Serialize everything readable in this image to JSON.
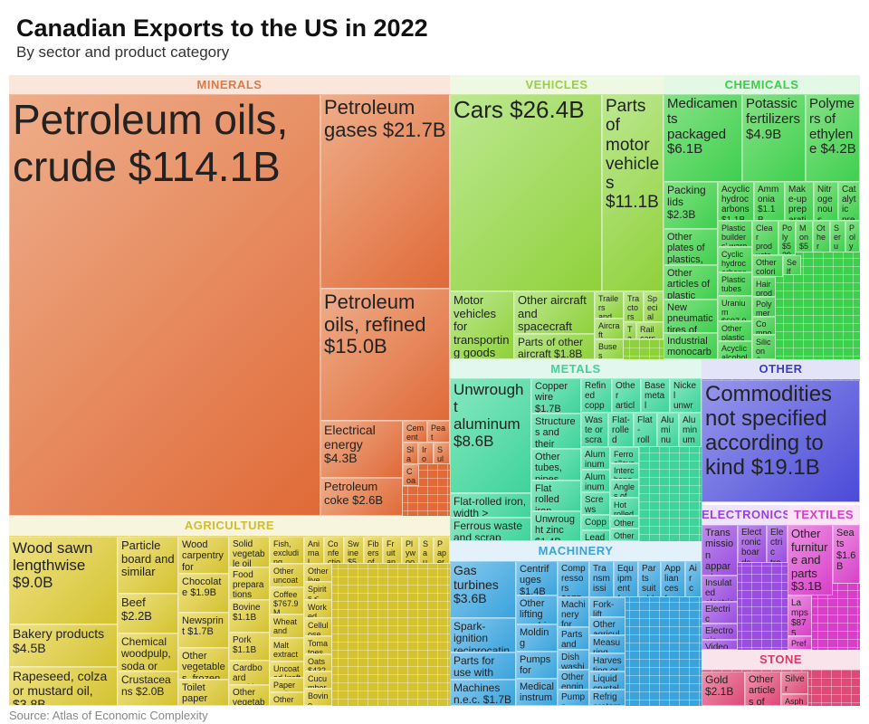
{
  "title": "Canadian Exports to the US in 2022",
  "subtitle": "By sector and product category",
  "source": "Source: Atlas of Economic Complexity",
  "chart_data": {
    "type": "treemap",
    "sectors": [
      {
        "name": "MINERALS",
        "color": "#e06a38",
        "tiles": [
          [
            "Petroleum oils, crude",
            "$114.1B"
          ],
          [
            "Petroleum gases",
            "$21.7B"
          ],
          [
            "Petroleum oils, refined",
            "$15.0B"
          ],
          [
            "Electrical energy",
            "$4.3B"
          ],
          [
            "Petroleum coke",
            "$2.6B"
          ],
          [
            "Cement",
            "$497."
          ],
          [
            "Peat",
            "$482."
          ],
          [
            "Slag, ash and",
            ""
          ],
          [
            "Iron ores and",
            ""
          ],
          [
            "Sulphur crude",
            "$28"
          ],
          [
            "Coal",
            "$255."
          ]
        ]
      },
      {
        "name": "VEHICLES",
        "color": "#8fd13a",
        "tiles": [
          [
            "Cars",
            "$26.4B"
          ],
          [
            "Parts of motor vehicles",
            "$11.1B"
          ],
          [
            "Motor vehicles for transporting goods",
            ""
          ],
          [
            "Other aircraft and spacecraft",
            ""
          ],
          [
            "Parts of other aircraft",
            "$1.8B"
          ],
          [
            "Trailers and semi-trailers",
            ""
          ],
          [
            "Tractors",
            "$480."
          ],
          [
            "Special purpose motor",
            ""
          ],
          [
            "Aircraft launching",
            ""
          ],
          [
            "Tanks",
            ""
          ],
          [
            "Rail cars",
            ""
          ],
          [
            "Buses",
            "$488.9M"
          ]
        ]
      },
      {
        "name": "CHEMICALS",
        "color": "#3fcf4f",
        "tiles": [
          [
            "Medicaments packaged",
            "$6.1B"
          ],
          [
            "Potassic fertilizers",
            "$4.9B"
          ],
          [
            "Polymers of ethylene",
            "$4.2B"
          ],
          [
            "Packing lids",
            "$2.3B"
          ],
          [
            "Other plates of plastics,",
            ""
          ],
          [
            "Other articles of plastic",
            ""
          ],
          [
            "New pneumatic tires of",
            ""
          ],
          [
            "Industrial monocarboxylic",
            ""
          ],
          [
            "Acyclic hydrocarbons",
            "$1.1B"
          ],
          [
            "Ammonia",
            "$1.1B"
          ],
          [
            "Make-up preparations",
            "$1.0B"
          ],
          [
            "Nitrogenous fertilizers",
            "$918."
          ],
          [
            "Catalytic preparations",
            "$896."
          ],
          [
            "Plastic builders' ware",
            ""
          ],
          [
            "Cyclic hydrocarbons",
            ""
          ],
          [
            "Plastic tubes",
            ""
          ],
          [
            "Uranium",
            "$697.9M"
          ],
          [
            "Other plastic",
            ""
          ],
          [
            "Acyclic alcohols",
            ""
          ],
          [
            "Clear products",
            "$616"
          ],
          [
            "Poly",
            "$529"
          ],
          [
            "Mon",
            "$512"
          ],
          [
            "Other articles of vulc.",
            ""
          ],
          [
            "Serum and vacc.",
            ""
          ],
          [
            "Poly acid",
            "$496"
          ],
          [
            "Other colorin",
            ""
          ],
          [
            "Self plas",
            ""
          ],
          [
            "Hair products",
            ""
          ],
          [
            "Polymers of",
            ""
          ],
          [
            "Compounded rubber",
            ""
          ],
          [
            "Silicon & Paints and",
            ""
          ]
        ]
      },
      {
        "name": "METALS",
        "color": "#3fd39a",
        "tiles": [
          [
            "Unwrought aluminum",
            "$8.6B"
          ],
          [
            "Flat-rolled iron, width >",
            ""
          ],
          [
            "Ferrous waste and scrap",
            ""
          ],
          [
            "Copper wire",
            "$1.7B"
          ],
          [
            "Structures and their parts, of",
            ""
          ],
          [
            "Other tubes, pipes",
            ""
          ],
          [
            "Flat rolled iron",
            ""
          ],
          [
            "Unwrought zinc",
            "$1.4B"
          ],
          [
            "Refined copper and copper",
            ""
          ],
          [
            "Other articles of iron",
            ""
          ],
          [
            "Base metal mountings fittings",
            ""
          ],
          [
            "Nickel unwrought",
            "$1.0B"
          ],
          [
            "Waste or scrap, of",
            ""
          ],
          [
            "Flat-rolled products of",
            ""
          ],
          [
            "Flat-rolled iron, width >",
            ""
          ],
          [
            "Aluminum plates",
            ""
          ],
          [
            "Aluminum wire",
            "$663"
          ],
          [
            "Aluminum structures",
            ""
          ],
          [
            "Aluminum bars",
            ""
          ],
          [
            "Screws and",
            ""
          ],
          [
            "Copper waste",
            ""
          ],
          [
            "Lead refined",
            ""
          ],
          [
            "Ferroalloys",
            "$329."
          ],
          [
            "Interchangeable tools",
            ""
          ],
          [
            "Angles of",
            ""
          ],
          [
            "Hot rolled",
            ""
          ],
          [
            "Other articles",
            ""
          ],
          [
            "Other bars",
            ""
          ]
        ]
      },
      {
        "name": "OTHER",
        "color": "#4a4ad8",
        "tiles": [
          [
            "Commodities not specified according to kind",
            "$19.1B"
          ]
        ]
      },
      {
        "name": "ELECTRONICS",
        "color": "#9a4ee0",
        "tiles": [
          [
            "Transmission apparatus for radio,",
            ""
          ],
          [
            "Electronic boards",
            "$1.2B"
          ],
          [
            "Electric transformers",
            "$1.1B"
          ],
          [
            "Insulated electric wire",
            ""
          ],
          [
            "Electric machines",
            ""
          ],
          [
            "Electronic integrated",
            ""
          ],
          [
            "Video recording",
            ""
          ]
        ]
      },
      {
        "name": "TEXTILES",
        "color": "#d83fc8",
        "tiles": [
          [
            "Other furniture and parts",
            "$3.1B"
          ],
          [
            "Seats",
            "$1.6B"
          ],
          [
            "Lamps",
            "$875."
          ],
          [
            "Prefab buildings",
            ""
          ]
        ]
      },
      {
        "name": "STONE",
        "color": "#dd4a78",
        "tiles": [
          [
            "Gold",
            "$2.1B"
          ],
          [
            "Other articles of",
            ""
          ],
          [
            "Silver",
            "$854."
          ],
          [
            "Asphalt",
            ""
          ]
        ]
      },
      {
        "name": "MACHINERY",
        "color": "#3aa3dc",
        "tiles": [
          [
            "Gas turbines",
            "$3.6B"
          ],
          [
            "Spark-ignition reciprocating internal",
            ""
          ],
          [
            "Parts for use with",
            ""
          ],
          [
            "Machines n.e.c.",
            "$1.7B"
          ],
          [
            "Centrifuges",
            "$1.4B"
          ],
          [
            "Other lifting machinery",
            ""
          ],
          [
            "Molding boxes for",
            ""
          ],
          [
            "Pumps for liquids",
            ""
          ],
          [
            "Medical instruments",
            "$1.1B"
          ],
          [
            "Compressors",
            "$875."
          ],
          [
            "Transmission shafts",
            "$844."
          ],
          [
            "Equipment for temperature change",
            ""
          ],
          [
            "Parts suitable for use",
            ""
          ],
          [
            "Appliances for thermostatic control",
            ""
          ],
          [
            "Air conditioners",
            "$783."
          ],
          [
            "Machinery for soil",
            ""
          ],
          [
            "Parts and",
            ""
          ],
          [
            "Dish washing",
            ""
          ],
          [
            "Other engines",
            ""
          ],
          [
            "Pumps, compressors",
            ""
          ],
          [
            "Fork-lift trucks",
            ""
          ],
          [
            "Other agricultural",
            ""
          ],
          [
            "Measuring instruments",
            ""
          ],
          [
            "Harvesting or",
            ""
          ],
          [
            "Liquid crystal",
            ""
          ],
          [
            "Refrigerators freezers",
            ""
          ]
        ]
      },
      {
        "name": "AGRICULTURE",
        "color": "#d4c230",
        "tiles": [
          [
            "Wood sawn lengthwise",
            "$9.0B"
          ],
          [
            "Bakery products",
            "$4.5B"
          ],
          [
            "Rapeseed, colza or mustard oil,",
            "$3.8B"
          ],
          [
            "Particle board and similar",
            ""
          ],
          [
            "Beef",
            "$2.2B"
          ],
          [
            "Chemical woodpulp, soda or",
            ""
          ],
          [
            "Crustaceans",
            "$2.0B"
          ],
          [
            "Wood carpentry for",
            ""
          ],
          [
            "Chocolate",
            "$1.9B"
          ],
          [
            "Newsprint",
            "$1.7B"
          ],
          [
            "Other vegetables, frozen",
            ""
          ],
          [
            "Toilet paper",
            "$1.3B"
          ],
          [
            "Solid vegetable oil and",
            ""
          ],
          [
            "Food preparations n.e.c.",
            ""
          ],
          [
            "Bovine",
            "$1.1B"
          ],
          [
            "Pork",
            "$1.1B"
          ],
          [
            "Cardboard packing containers",
            ""
          ],
          [
            "Other vegetable",
            ""
          ],
          [
            "Fish, excluding fillets",
            ""
          ],
          [
            "Other uncoated",
            ""
          ],
          [
            "Coffee",
            "$767.9M"
          ],
          [
            "Wheat and",
            ""
          ],
          [
            "Malt extract",
            ""
          ],
          [
            "Uncoated kraft",
            ""
          ],
          [
            "Paper and",
            ""
          ],
          [
            "Other prepared",
            ""
          ],
          [
            "Animal feed",
            "$568"
          ],
          [
            "Confectionery sugar",
            "$565"
          ],
          [
            "Swine",
            "$557"
          ],
          [
            "Fibers of wood",
            ""
          ],
          [
            "Fruit and nuts,",
            ""
          ],
          [
            "Plywood",
            "$51"
          ],
          [
            "Sauces and seas",
            ""
          ],
          [
            "Paper used for",
            ""
          ],
          [
            "Other live",
            ""
          ],
          [
            "Spirits < 80%",
            ""
          ],
          [
            "Worked cereal",
            ""
          ],
          [
            "Cellulose wadding",
            ""
          ],
          [
            "Tomatoes",
            "$452.1M"
          ],
          [
            "Oats",
            "$432.2M"
          ],
          [
            "Cucumbers",
            "$429.7M"
          ],
          [
            "Bovine, sheep",
            ""
          ]
        ]
      }
    ]
  }
}
